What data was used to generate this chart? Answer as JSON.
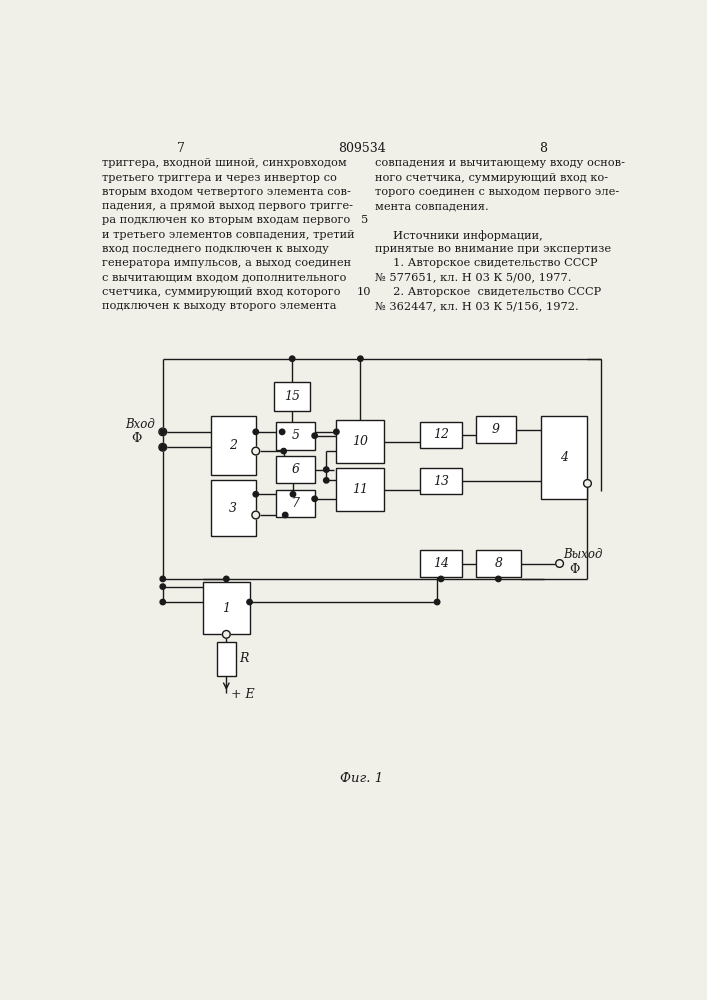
{
  "bg": "#f0efe8",
  "lc": "#1a1a1a",
  "tc": "#1a1a1a",
  "patent": "809534",
  "p_left": "7",
  "p_right": "8",
  "left_col": [
    "триггера, входной шиной, синхровходом",
    "третьего триггера и через инвертор со",
    "вторым входом четвертого элемента сов-",
    "падения, а прямой выход первого тригге-",
    "ра подключен ко вторым входам первого",
    "и третьего элементов совпадения, третий",
    "вход последнего подключен к выходу",
    "генератора импульсов, а выход соединен",
    "с вычитающим входом дополнительного",
    "счетчика, суммирующий вход которого",
    "подключен к выходу второго элемента"
  ],
  "right_col": [
    "совпадения и вычитающему входу основ-",
    "ного счетчика, суммирующий вход ко-",
    "торого соединен с выходом первого эле-",
    "мента совпадения.",
    "",
    "     Источники информации,",
    "принятые во внимание при экспертизе",
    "     1. Авторское свидетельство СССР",
    "№ 577651, кл. Н 03 К 5/00, 1977.",
    "     2. Авторское  свидетельство СССР",
    "№ 362447, кл. Н 03 К 5/156, 1972."
  ],
  "caption": "Фиг. 1"
}
